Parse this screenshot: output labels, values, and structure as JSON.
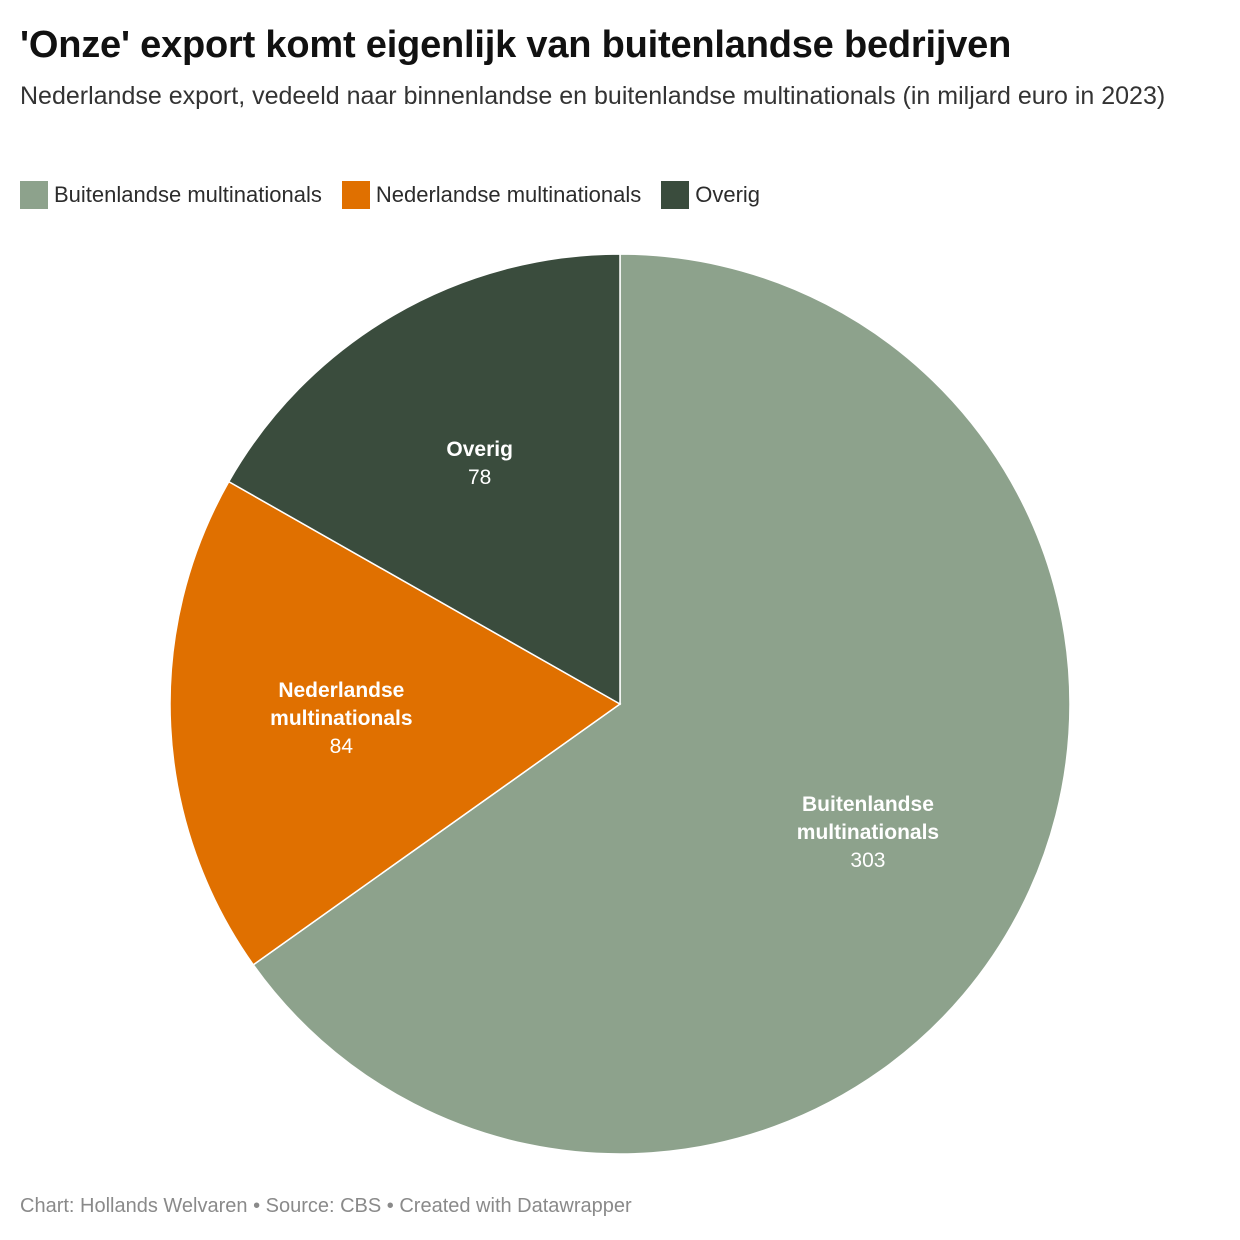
{
  "title": "'Onze' export komt eigenlijk van buitenlandse bedrijven",
  "subtitle": "Nederlandse export, vedeeld naar binnenlandse en buitenlandse multinationals (in miljard euro in 2023)",
  "legend": [
    {
      "label": "Buitenlandse multinationals",
      "color": "#8da28c"
    },
    {
      "label": "Nederlandse multinationals",
      "color": "#e07000"
    },
    {
      "label": "Overig",
      "color": "#3a4c3d"
    }
  ],
  "footer": "Chart: Hollands Welvaren • Source: CBS • Created with Datawrapper",
  "chart_data": {
    "type": "pie",
    "title": "'Onze' export komt eigenlijk van buitenlandse bedrijven",
    "subtitle": "Nederlandse export, vedeeld naar binnenlandse en buitenlandse multinationals (in miljard euro in 2023)",
    "legend_position": "top-left",
    "start_angle": "12 o'clock",
    "direction": "clockwise",
    "slices": [
      {
        "label": "Buitenlandse multinationals",
        "label_lines": [
          "Buitenlandse",
          "multinationals"
        ],
        "value": 303,
        "value_text": "303",
        "color": "#8da28c"
      },
      {
        "label": "Nederlandse multinationals",
        "label_lines": [
          "Nederlandse",
          "multinationals"
        ],
        "value": 84,
        "value_text": "84",
        "color": "#e07000"
      },
      {
        "label": "Overig",
        "label_lines": [
          "Overig"
        ],
        "value": 78,
        "value_text": "78",
        "color": "#3a4c3d"
      }
    ]
  }
}
